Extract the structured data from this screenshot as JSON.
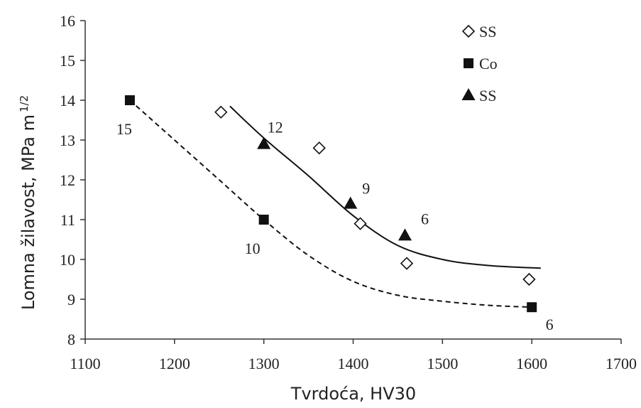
{
  "chart_data": {
    "type": "scatter",
    "xlabel": "Tvrdoća, HV30",
    "ylabel": "Lomna žilavost, MPa m",
    "ylabel_sup": "1/2",
    "xlim": [
      1100,
      1700
    ],
    "ylim": [
      8,
      16
    ],
    "x_ticks": [
      "1100",
      "1200",
      "1300",
      "1400",
      "1500",
      "1600",
      "1700"
    ],
    "y_ticks": [
      "8",
      "9",
      "10",
      "11",
      "12",
      "13",
      "14",
      "15",
      "16"
    ],
    "legend_position": "top-right",
    "series": [
      {
        "name": "SS",
        "marker": "diamond-open",
        "points": [
          {
            "x": 1252,
            "y": 13.7
          },
          {
            "x": 1362,
            "y": 12.8
          },
          {
            "x": 1408,
            "y": 10.9
          },
          {
            "x": 1460,
            "y": 9.9
          },
          {
            "x": 1597,
            "y": 9.5
          }
        ]
      },
      {
        "name": "Co",
        "marker": "square-filled",
        "points": [
          {
            "x": 1150,
            "y": 14.0,
            "label": "15"
          },
          {
            "x": 1300,
            "y": 11.0,
            "label": "10"
          },
          {
            "x": 1600,
            "y": 8.8,
            "label": "6"
          }
        ]
      },
      {
        "name": "SS",
        "marker": "triangle-filled",
        "points": [
          {
            "x": 1300,
            "y": 12.9,
            "label": "12"
          },
          {
            "x": 1397,
            "y": 11.4,
            "label": "9"
          },
          {
            "x": 1458,
            "y": 10.6,
            "label": "6"
          }
        ]
      }
    ],
    "curves": [
      {
        "style": "solid",
        "points": [
          [
            1262,
            13.85
          ],
          [
            1300,
            13.05
          ],
          [
            1350,
            12.1
          ],
          [
            1400,
            11.1
          ],
          [
            1450,
            10.35
          ],
          [
            1500,
            10.0
          ],
          [
            1550,
            9.85
          ],
          [
            1610,
            9.78
          ]
        ]
      },
      {
        "style": "dashed",
        "points": [
          [
            1150,
            14.0
          ],
          [
            1200,
            13.0
          ],
          [
            1250,
            12.0
          ],
          [
            1300,
            11.0
          ],
          [
            1350,
            10.1
          ],
          [
            1400,
            9.45
          ],
          [
            1450,
            9.1
          ],
          [
            1500,
            8.95
          ],
          [
            1550,
            8.85
          ],
          [
            1600,
            8.8
          ]
        ]
      }
    ],
    "colors": {
      "ink": "#111111",
      "axis": "#333333"
    }
  }
}
